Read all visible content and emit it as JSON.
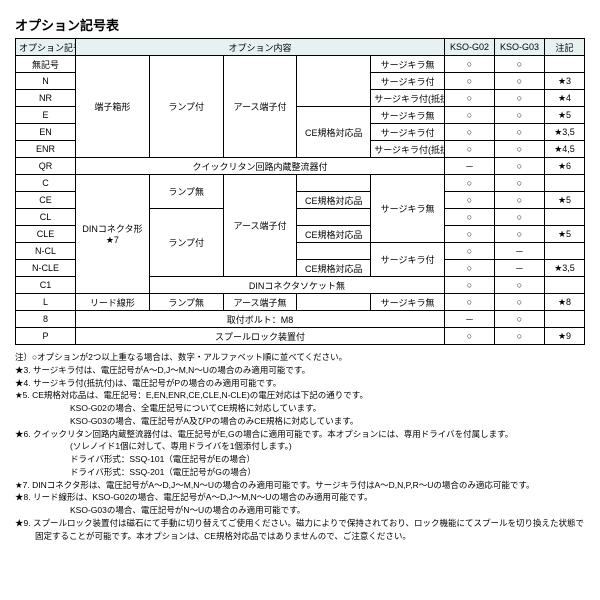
{
  "title": "オプション記号表",
  "headers": {
    "code": "オプション記号",
    "content": "オプション内容",
    "g02": "KSO-G02",
    "g03": "KSO-G03",
    "note": "注記"
  },
  "rows": [
    {
      "code": "無記号",
      "c1": "",
      "c2": "",
      "c3": "",
      "c4": "",
      "c5": "サージキラ無",
      "g02": "○",
      "g03": "○",
      "note": ""
    },
    {
      "code": "N",
      "c1": "",
      "c2": "",
      "c3": "",
      "c4": "",
      "c5": "サージキラ付",
      "g02": "○",
      "g03": "○",
      "note": "★3"
    },
    {
      "code": "NR",
      "c1": "端子箱形",
      "c2": "ランプ付",
      "c3": "アース端子付",
      "c4": "",
      "c5": "サージキラ付(抵抗付)",
      "g02": "○",
      "g03": "○",
      "note": "★4"
    },
    {
      "code": "E",
      "c1": "",
      "c2": "",
      "c3": "",
      "c4": "CE規格対応品",
      "c5": "サージキラ無",
      "g02": "○",
      "g03": "○",
      "note": "★5"
    },
    {
      "code": "EN",
      "c1": "",
      "c2": "",
      "c3": "",
      "c4": "",
      "c5": "サージキラ付",
      "g02": "○",
      "g03": "○",
      "note": "★3,5"
    },
    {
      "code": "ENR",
      "c1": "",
      "c2": "",
      "c3": "",
      "c4": "",
      "c5": "サージキラ付(抵抗付)",
      "g02": "○",
      "g03": "○",
      "note": "★4,5"
    },
    {
      "code": "QR",
      "c1": "",
      "c2": "",
      "c3": "クイックリタン回路内蔵整流器付",
      "c4": "",
      "c5": "",
      "g02": "－",
      "g03": "○",
      "note": "★6"
    },
    {
      "code": "C",
      "c1": "",
      "c2": "ランプ無",
      "c3": "",
      "c4": "",
      "c5": "サージキラ無",
      "g02": "○",
      "g03": "○",
      "note": ""
    },
    {
      "code": "CE",
      "c1": "",
      "c2": "",
      "c3": "",
      "c4": "CE規格対応品",
      "c5": "",
      "g02": "○",
      "g03": "○",
      "note": "★5"
    },
    {
      "code": "CL",
      "c1": "DINコネクタ形",
      "c2": "ランプ付",
      "c3": "アース端子付",
      "c4": "",
      "c5": "",
      "g02": "○",
      "g03": "○",
      "note": ""
    },
    {
      "code": "CLE",
      "c1": "★7",
      "c2": "",
      "c3": "",
      "c4": "CE規格対応品",
      "c5": "",
      "g02": "○",
      "g03": "○",
      "note": "★5"
    },
    {
      "code": "N-CL",
      "c1": "",
      "c2": "",
      "c3": "",
      "c4": "",
      "c5": "サージキラ付",
      "g02": "○",
      "g03": "－",
      "note": ""
    },
    {
      "code": "N-CLE",
      "c1": "",
      "c2": "",
      "c3": "",
      "c4": "CE規格対応品",
      "c5": "",
      "g02": "○",
      "g03": "－",
      "note": "★3,5"
    },
    {
      "code": "C1",
      "c1": "",
      "c2": "",
      "c3": "DINコネクタソケット無",
      "c4": "",
      "c5": "",
      "g02": "○",
      "g03": "○",
      "note": ""
    },
    {
      "code": "L",
      "c1": "リード線形",
      "c2": "ランプ無",
      "c3": "アース端子無",
      "c4": "",
      "c5": "サージキラ無",
      "g02": "○",
      "g03": "○",
      "note": "★8"
    },
    {
      "code": "8",
      "c1": "",
      "c2": "",
      "c3": "取付ボルト：M8",
      "c4": "",
      "c5": "",
      "g02": "－",
      "g03": "○",
      "note": ""
    },
    {
      "code": "P",
      "c1": "",
      "c2": "",
      "c3": "スプールロック装置付",
      "c4": "",
      "c5": "",
      "g02": "○",
      "g03": "○",
      "note": "★9"
    }
  ],
  "notes": [
    "注）○オプションが2つ以上重なる場合は、数字・アルファベット順に並べてください。",
    "★3. サージキラ付は、電圧記号がA～D,J～M,N～Uの場合のみ適用可能です。",
    "★4. サージキラ付(抵抗付)は、電圧記号がPの場合のみ適用可能です。",
    "★5. CE規格対応品は、電圧記号：E,EN,ENR,CE,CLE,N-CLE)の電圧対応は下記の通りです。"
  ],
  "notes_indent": [
    "KSO-G02の場合、全電圧記号についてCE規格に対応しています。",
    "KSO-G03の場合、電圧記号がA及びPの場合のみCE規格に対応しています。"
  ],
  "notes2": [
    "★6. クイックリタン回路内蔵整流器付は、電圧記号がE,Gの場合に適用可能です。本オプションには、専用ドライバを付属します。"
  ],
  "notes2_indent": [
    "(ソレノイド1個に対して、専用ドライバを1個添付します。)",
    "ドライバ形式：SSQ-101（電圧記号がEの場合）",
    "ドライバ形式：SSQ-201（電圧記号がGの場合）"
  ],
  "notes3": [
    "★7. DINコネクタ形は、電圧記号がA～D,J～M,N～Uの場合のみ適用可能です。サージキラ付はA～D,N,P,R～Uの場合のみ適応可能です。",
    "★8. リード線形は、KSO-G02の場合、電圧記号がA～D,J～M,N～Uの場合のみ適用可能です。"
  ],
  "notes3_indent": [
    "KSO-G03の場合、電圧記号がN～Uの場合のみ適用可能です。"
  ],
  "notes4": [
    "★9. スプールロック装置付は磁石にて手動に切り替えてご使用ください。磁力によりで保持されており、ロック機能にてスプールを切り換えた状態で固定することが可能です。本オプションは、CE規格対応品ではありませんので、ご注意ください。"
  ]
}
